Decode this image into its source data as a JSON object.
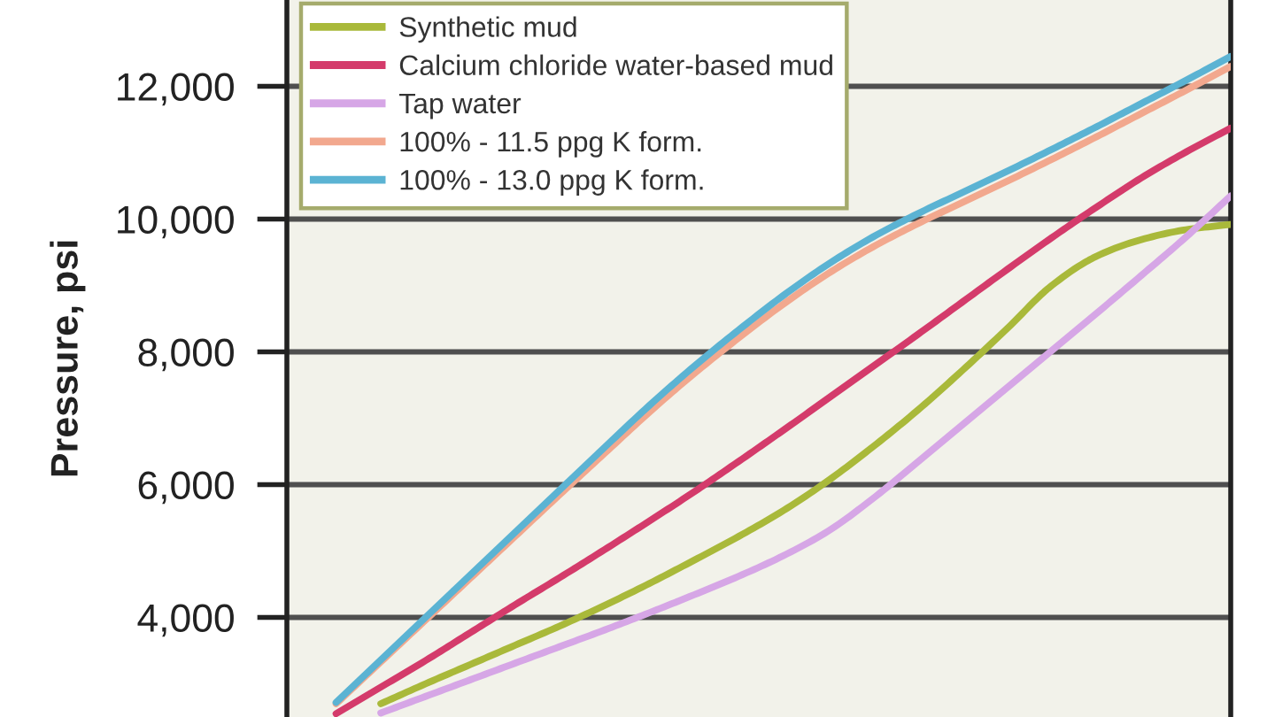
{
  "chart_data": {
    "type": "line",
    "ylabel": "Pressure, psi",
    "categories": [
      null,
      null,
      null,
      null,
      null,
      null,
      null,
      null,
      null,
      null,
      null,
      null,
      null,
      null,
      null,
      null,
      null,
      null,
      null,
      null,
      null
    ],
    "series": [
      {
        "name": "Synthetic mud",
        "color": "#a9b93a",
        "values": [
          null,
          2700,
          3000,
          3290,
          3580,
          3870,
          4180,
          4510,
          4860,
          5220,
          5610,
          6060,
          6570,
          7120,
          7720,
          8350,
          9000,
          9440,
          9690,
          9840,
          9920
        ]
      },
      {
        "name": "Calcium chloride water-based mud",
        "color": "#d43b6b",
        "values": [
          2550,
          2950,
          3350,
          3770,
          4190,
          4600,
          5020,
          5450,
          5890,
          6350,
          6820,
          7300,
          7780,
          8260,
          8750,
          9240,
          9720,
          10180,
          10620,
          11010,
          11370
        ]
      },
      {
        "name": "Tap water",
        "color": "#d6a6e6",
        "values": [
          null,
          2560,
          2810,
          3060,
          3310,
          3560,
          3810,
          4070,
          4340,
          4620,
          4930,
          5300,
          5790,
          6340,
          6900,
          7460,
          8020,
          8580,
          9150,
          9730,
          10350
        ]
      },
      {
        "name": "100% - 11.5 ppg K form.",
        "color": "#f2a88e",
        "values": [
          2700,
          3330,
          3960,
          4590,
          5220,
          5850,
          6470,
          7090,
          7670,
          8210,
          8720,
          9180,
          9580,
          9930,
          10250,
          10570,
          10900,
          11240,
          11590,
          11940,
          12300
        ]
      },
      {
        "name": "100% - 13.0 ppg K form.",
        "color": "#5bb3d3",
        "values": [
          2720,
          3360,
          4000,
          4640,
          5280,
          5920,
          6560,
          7190,
          7780,
          8330,
          8850,
          9320,
          9730,
          10080,
          10400,
          10720,
          11050,
          11390,
          11740,
          12090,
          12450
        ]
      }
    ],
    "ylim": [
      2500,
      13300
    ],
    "yticks": [
      {
        "value": 4000,
        "label": "4,000"
      },
      {
        "value": 6000,
        "label": "6,000"
      },
      {
        "value": 8000,
        "label": "8,000"
      },
      {
        "value": 10000,
        "label": "10,000"
      },
      {
        "value": 12000,
        "label": "12,000"
      }
    ],
    "grid": "y",
    "legend": "top left",
    "tick_labels": "y"
  }
}
